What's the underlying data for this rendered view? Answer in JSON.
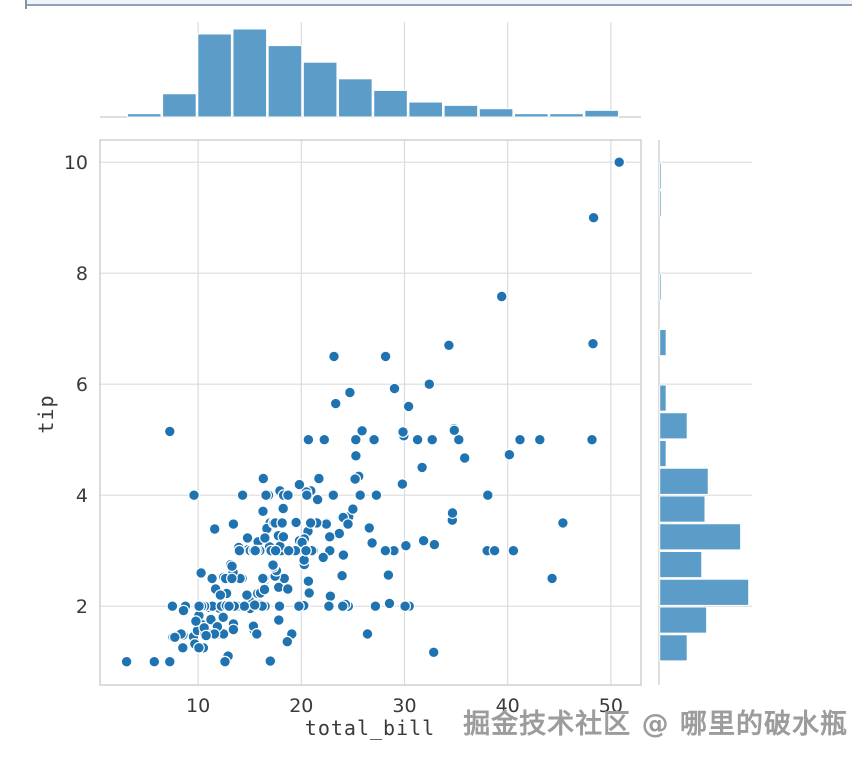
{
  "watermark": "掘金技术社区 @ 哪里的破水瓶",
  "chart_data": {
    "type": "scatter",
    "title": "",
    "xlabel": "total_bill",
    "ylabel": "tip",
    "x_ticks": [
      10,
      20,
      30,
      40,
      50
    ],
    "y_ticks": [
      2,
      4,
      6,
      8,
      10
    ],
    "xlim": [
      0.49,
      52.92
    ],
    "ylim": [
      0.58,
      10.4
    ],
    "grid": true,
    "legend": "none",
    "point_color": "#1f73b1",
    "hist_color": "#5b9cc9",
    "grid_color": "#dcdcdc",
    "spine_color": "#c9c9c9",
    "tick_color": "#3a3a3a",
    "top_histogram": {
      "variable": "total_bill",
      "bin_start": 3.07,
      "bin_width": 3.41,
      "counts": [
        2,
        14,
        50,
        53,
        43,
        33,
        23,
        16,
        9,
        7,
        5,
        2,
        2,
        4
      ]
    },
    "right_histogram": {
      "variable": "tip",
      "bin_start": 1.0,
      "bin_width": 0.5,
      "counts": [
        17,
        29,
        55,
        26,
        50,
        28,
        30,
        4,
        17,
        4,
        0,
        4,
        0,
        1,
        0,
        0,
        1,
        1
      ]
    },
    "points": [
      [
        16.99,
        1.01
      ],
      [
        10.34,
        1.66
      ],
      [
        21.01,
        3.5
      ],
      [
        23.68,
        3.31
      ],
      [
        24.59,
        3.61
      ],
      [
        25.29,
        4.71
      ],
      [
        8.77,
        2.0
      ],
      [
        26.88,
        3.12
      ],
      [
        15.04,
        1.96
      ],
      [
        14.78,
        3.23
      ],
      [
        10.27,
        1.71
      ],
      [
        35.26,
        5.0
      ],
      [
        15.42,
        1.57
      ],
      [
        18.43,
        3.0
      ],
      [
        14.83,
        3.02
      ],
      [
        21.58,
        3.92
      ],
      [
        10.33,
        1.67
      ],
      [
        16.29,
        3.71
      ],
      [
        16.97,
        3.5
      ],
      [
        20.65,
        3.35
      ],
      [
        17.92,
        4.08
      ],
      [
        20.29,
        2.75
      ],
      [
        15.77,
        2.23
      ],
      [
        39.42,
        7.58
      ],
      [
        19.82,
        3.18
      ],
      [
        17.81,
        2.34
      ],
      [
        13.37,
        2.0
      ],
      [
        12.69,
        2.0
      ],
      [
        21.7,
        4.3
      ],
      [
        19.65,
        3.0
      ],
      [
        9.55,
        1.45
      ],
      [
        18.35,
        2.5
      ],
      [
        15.06,
        3.0
      ],
      [
        20.69,
        2.45
      ],
      [
        17.78,
        3.27
      ],
      [
        24.06,
        3.6
      ],
      [
        16.31,
        2.0
      ],
      [
        16.93,
        3.07
      ],
      [
        18.69,
        2.31
      ],
      [
        31.27,
        5.0
      ],
      [
        16.04,
        2.24
      ],
      [
        17.46,
        2.54
      ],
      [
        13.94,
        3.06
      ],
      [
        9.68,
        1.32
      ],
      [
        30.4,
        5.6
      ],
      [
        18.29,
        3.0
      ],
      [
        22.23,
        5.0
      ],
      [
        32.4,
        6.0
      ],
      [
        28.55,
        2.05
      ],
      [
        18.04,
        3.0
      ],
      [
        12.54,
        2.5
      ],
      [
        10.29,
        2.6
      ],
      [
        34.81,
        5.2
      ],
      [
        9.94,
        1.56
      ],
      [
        25.56,
        4.34
      ],
      [
        19.49,
        3.51
      ],
      [
        38.01,
        3.0
      ],
      [
        26.41,
        1.5
      ],
      [
        11.24,
        1.76
      ],
      [
        48.27,
        6.73
      ],
      [
        20.29,
        3.21
      ],
      [
        13.81,
        2.0
      ],
      [
        11.02,
        1.98
      ],
      [
        18.29,
        3.76
      ],
      [
        17.59,
        2.64
      ],
      [
        20.08,
        3.15
      ],
      [
        16.45,
        2.47
      ],
      [
        3.07,
        1.0
      ],
      [
        20.23,
        2.01
      ],
      [
        15.01,
        2.09
      ],
      [
        12.02,
        1.97
      ],
      [
        17.07,
        3.0
      ],
      [
        26.86,
        3.14
      ],
      [
        25.28,
        5.0
      ],
      [
        14.73,
        2.2
      ],
      [
        10.51,
        1.25
      ],
      [
        17.92,
        3.08
      ],
      [
        27.2,
        4.0
      ],
      [
        22.76,
        3.0
      ],
      [
        17.29,
        2.71
      ],
      [
        19.44,
        3.0
      ],
      [
        16.66,
        3.4
      ],
      [
        10.07,
        1.83
      ],
      [
        32.68,
        5.0
      ],
      [
        15.98,
        2.03
      ],
      [
        34.83,
        5.17
      ],
      [
        13.03,
        2.0
      ],
      [
        18.28,
        4.0
      ],
      [
        24.71,
        5.85
      ],
      [
        21.16,
        3.0
      ],
      [
        28.97,
        3.0
      ],
      [
        22.49,
        3.5
      ],
      [
        5.75,
        1.0
      ],
      [
        16.32,
        4.3
      ],
      [
        22.75,
        3.25
      ],
      [
        40.17,
        4.73
      ],
      [
        27.28,
        4.0
      ],
      [
        12.03,
        1.5
      ],
      [
        21.01,
        3.0
      ],
      [
        12.46,
        1.5
      ],
      [
        11.35,
        2.5
      ],
      [
        15.38,
        3.0
      ],
      [
        44.3,
        2.5
      ],
      [
        22.42,
        3.48
      ],
      [
        20.92,
        4.08
      ],
      [
        15.36,
        1.64
      ],
      [
        20.49,
        4.06
      ],
      [
        25.21,
        4.29
      ],
      [
        18.24,
        3.76
      ],
      [
        14.31,
        4.0
      ],
      [
        14.0,
        3.0
      ],
      [
        7.25,
        1.0
      ],
      [
        38.07,
        4.0
      ],
      [
        23.95,
        2.55
      ],
      [
        25.71,
        4.0
      ],
      [
        17.31,
        3.5
      ],
      [
        29.93,
        5.07
      ],
      [
        10.65,
        1.5
      ],
      [
        12.43,
        1.8
      ],
      [
        24.08,
        2.92
      ],
      [
        11.69,
        2.31
      ],
      [
        13.42,
        1.68
      ],
      [
        14.26,
        2.5
      ],
      [
        15.95,
        2.0
      ],
      [
        12.48,
        2.52
      ],
      [
        29.8,
        4.2
      ],
      [
        8.52,
        1.48
      ],
      [
        14.52,
        2.0
      ],
      [
        11.38,
        2.0
      ],
      [
        22.82,
        2.18
      ],
      [
        19.08,
        1.5
      ],
      [
        20.27,
        2.83
      ],
      [
        11.17,
        1.5
      ],
      [
        12.26,
        2.0
      ],
      [
        18.26,
        3.25
      ],
      [
        8.51,
        1.25
      ],
      [
        10.33,
        2.0
      ],
      [
        14.15,
        2.0
      ],
      [
        16.0,
        2.0
      ],
      [
        13.16,
        2.75
      ],
      [
        17.47,
        3.5
      ],
      [
        34.3,
        6.7
      ],
      [
        41.19,
        5.0
      ],
      [
        27.05,
        5.0
      ],
      [
        16.43,
        2.3
      ],
      [
        8.35,
        1.5
      ],
      [
        18.64,
        1.36
      ],
      [
        11.87,
        1.63
      ],
      [
        9.78,
        1.73
      ],
      [
        7.51,
        2.0
      ],
      [
        14.07,
        2.5
      ],
      [
        13.13,
        2.0
      ],
      [
        17.26,
        2.74
      ],
      [
        24.55,
        2.0
      ],
      [
        19.77,
        2.0
      ],
      [
        29.85,
        5.14
      ],
      [
        48.17,
        5.0
      ],
      [
        25.0,
        3.75
      ],
      [
        13.39,
        2.61
      ],
      [
        16.49,
        2.0
      ],
      [
        21.5,
        3.5
      ],
      [
        12.66,
        2.5
      ],
      [
        16.21,
        2.0
      ],
      [
        13.81,
        2.0
      ],
      [
        17.51,
        3.0
      ],
      [
        24.52,
        3.48
      ],
      [
        20.76,
        2.24
      ],
      [
        31.71,
        4.5
      ],
      [
        10.59,
        1.61
      ],
      [
        10.63,
        2.0
      ],
      [
        50.81,
        10.0
      ],
      [
        15.81,
        3.16
      ],
      [
        7.25,
        5.15
      ],
      [
        31.85,
        3.18
      ],
      [
        16.82,
        4.0
      ],
      [
        32.9,
        3.11
      ],
      [
        17.89,
        2.0
      ],
      [
        14.48,
        2.0
      ],
      [
        9.6,
        4.0
      ],
      [
        34.63,
        3.55
      ],
      [
        34.65,
        3.68
      ],
      [
        23.33,
        5.65
      ],
      [
        45.35,
        3.5
      ],
      [
        23.17,
        6.5
      ],
      [
        40.55,
        3.0
      ],
      [
        20.69,
        5.0
      ],
      [
        20.9,
        3.5
      ],
      [
        30.46,
        2.0
      ],
      [
        18.15,
        3.5
      ],
      [
        23.1,
        4.0
      ],
      [
        15.69,
        1.5
      ],
      [
        19.81,
        4.19
      ],
      [
        28.44,
        2.56
      ],
      [
        15.48,
        2.02
      ],
      [
        16.58,
        4.0
      ],
      [
        7.56,
        1.44
      ],
      [
        10.34,
        2.0
      ],
      [
        43.11,
        5.0
      ],
      [
        13.0,
        2.0
      ],
      [
        13.51,
        2.0
      ],
      [
        18.71,
        4.0
      ],
      [
        12.74,
        2.01
      ],
      [
        13.0,
        2.0
      ],
      [
        16.4,
        2.5
      ],
      [
        20.53,
        4.0
      ],
      [
        16.47,
        3.23
      ],
      [
        26.59,
        3.41
      ],
      [
        38.73,
        3.0
      ],
      [
        24.27,
        2.03
      ],
      [
        12.76,
        2.23
      ],
      [
        30.06,
        2.0
      ],
      [
        25.89,
        5.16
      ],
      [
        48.33,
        9.0
      ],
      [
        13.27,
        2.5
      ],
      [
        28.17,
        6.5
      ],
      [
        12.9,
        1.1
      ],
      [
        28.15,
        3.0
      ],
      [
        11.59,
        1.5
      ],
      [
        7.74,
        1.44
      ],
      [
        30.14,
        3.09
      ],
      [
        12.16,
        2.2
      ],
      [
        13.42,
        3.48
      ],
      [
        8.58,
        1.92
      ],
      [
        15.98,
        3.0
      ],
      [
        13.42,
        1.58
      ],
      [
        16.27,
        2.5
      ],
      [
        10.09,
        2.0
      ],
      [
        20.45,
        3.0
      ],
      [
        13.28,
        2.72
      ],
      [
        22.12,
        2.88
      ],
      [
        24.01,
        2.0
      ],
      [
        15.69,
        3.0
      ],
      [
        11.61,
        3.39
      ],
      [
        10.77,
        1.47
      ],
      [
        15.53,
        3.0
      ],
      [
        10.07,
        1.25
      ],
      [
        12.6,
        1.0
      ],
      [
        32.83,
        1.17
      ],
      [
        35.83,
        4.67
      ],
      [
        29.03,
        5.92
      ],
      [
        27.18,
        2.0
      ],
      [
        22.67,
        2.0
      ],
      [
        17.82,
        1.75
      ],
      [
        18.78,
        3.0
      ]
    ]
  }
}
